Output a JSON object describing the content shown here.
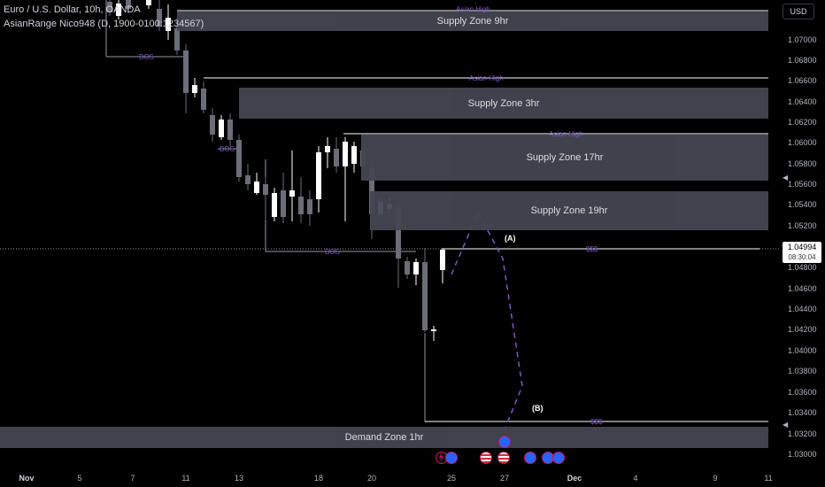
{
  "header": {
    "symbol_line": "Euro / U.S. Dollar, 10h, OANDA",
    "indicator_line": "AsianRange Nico948 (D, 1900-0100:1234567)"
  },
  "axis": {
    "currency": "USD",
    "ticks": [
      "1.07000",
      "1.06800",
      "1.06600",
      "1.06400",
      "1.06200",
      "1.06000",
      "1.05800",
      "1.05600",
      "1.05400",
      "1.05200",
      "1.04800",
      "1.04600",
      "1.04400",
      "1.04200",
      "1.04000",
      "1.03800",
      "1.03600",
      "1.03400",
      "1.03200",
      "1.03000"
    ],
    "current_price": "1.04994",
    "countdown": "08:30:04"
  },
  "zones": {
    "z9": "Supply Zone 9hr",
    "z3": "Supply Zone 3hr",
    "z17": "Supply Zone 17hr",
    "z19": "Supply Zone 19hr",
    "demand": "Demand Zone 1hr"
  },
  "labels": {
    "asian_high": "Asian High",
    "bos": "BOS",
    "liquidity": "$$$",
    "wave_a": "(A)",
    "wave_b": "(B)"
  },
  "xaxis": [
    "Nov",
    "5",
    "7",
    "11",
    "13",
    "18",
    "20",
    "25",
    "27",
    "Dec",
    "4",
    "9",
    "11"
  ],
  "colors": {
    "background": "#000000",
    "zone_fill": "#434651",
    "annotation_purple": "#7e57c2",
    "candle_bull": "#ffffff",
    "candle_bear": "#6b6e78"
  },
  "events": [
    {
      "icon": "lightning-icon"
    },
    {
      "icon": "globe-icon"
    },
    {
      "icon": "us-flag-icon"
    },
    {
      "icon": "us-flag-icon"
    },
    {
      "icon": "globe-icon"
    },
    {
      "icon": "globe-icon"
    },
    {
      "icon": "globe-icon"
    }
  ]
}
